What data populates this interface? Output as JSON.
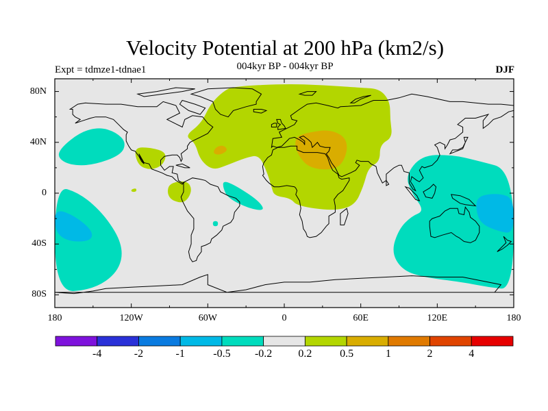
{
  "figure": {
    "title": "Velocity Potential at 200 hPa (km2/s)",
    "subtitle": "004kyr BP - 004kyr BP",
    "left_string": "Expt = tdmze1-tdnae1",
    "right_string": "DJF"
  },
  "map": {
    "projection": "cylindrical-equidistant",
    "lon_range": [
      -180,
      180
    ],
    "lat_range": [
      -90,
      90
    ],
    "ocean_fill": "#e6e6e6",
    "coastline_color": "#000000",
    "lat_ticks": [
      {
        "value": 80,
        "label": "80N"
      },
      {
        "value": 40,
        "label": "40N"
      },
      {
        "value": 0,
        "label": "0"
      },
      {
        "value": -40,
        "label": "40S"
      },
      {
        "value": -80,
        "label": "80S"
      }
    ],
    "lon_ticks": [
      {
        "value": -180,
        "label": "180"
      },
      {
        "value": -120,
        "label": "120W"
      },
      {
        "value": -60,
        "label": "60W"
      },
      {
        "value": 0,
        "label": "0"
      },
      {
        "value": 60,
        "label": "60E"
      },
      {
        "value": 120,
        "label": "120E"
      },
      {
        "value": 180,
        "label": "180"
      }
    ]
  },
  "colorbar": {
    "colors": [
      "#7e12dc",
      "#2a31d8",
      "#0a7be0",
      "#00b9e6",
      "#00dcbd",
      "#e6e6e6",
      "#b3d600",
      "#d9ad00",
      "#e07a00",
      "#e04400",
      "#e60000"
    ],
    "labels": [
      "-4",
      "-2",
      "-1",
      "-0.5",
      "-0.2",
      "0.2",
      "0.5",
      "1",
      "2",
      "4"
    ]
  },
  "chart_data": {
    "type": "heatmap",
    "variable": "Velocity Potential at 200 hPa",
    "units": "km2/s",
    "levels": [
      -4,
      -2,
      -1,
      -0.5,
      -0.2,
      0.2,
      0.5,
      1,
      2,
      4
    ],
    "regions": [
      {
        "name": "atlantic-africa-asia-positive",
        "range": [
          0.2,
          0.5
        ],
        "color": "#b3d600",
        "points": [
          [
            -40,
            84
          ],
          [
            0,
            86
          ],
          [
            30,
            85
          ],
          [
            60,
            83
          ],
          [
            75,
            82
          ],
          [
            83,
            72
          ],
          [
            83,
            58
          ],
          [
            85,
            44
          ],
          [
            75,
            38
          ],
          [
            75,
            25
          ],
          [
            66,
            20
          ],
          [
            62,
            5
          ],
          [
            55,
            -10
          ],
          [
            38,
            -14
          ],
          [
            10,
            -10
          ],
          [
            5,
            -4
          ],
          [
            -8,
            -2
          ],
          [
            -10,
            5
          ],
          [
            -14,
            18
          ],
          [
            -20,
            30
          ],
          [
            -30,
            28
          ],
          [
            -45,
            22
          ],
          [
            -56,
            18
          ],
          [
            -66,
            26
          ],
          [
            -70,
            40
          ],
          [
            -78,
            45
          ],
          [
            -65,
            55
          ],
          [
            -58,
            70
          ],
          [
            -48,
            80
          ]
        ]
      },
      {
        "name": "middle-east-maximum",
        "range": [
          0.5,
          1
        ],
        "color": "#d9ad00",
        "points": [
          [
            10,
            45
          ],
          [
            20,
            48
          ],
          [
            35,
            50
          ],
          [
            47,
            45
          ],
          [
            50,
            35
          ],
          [
            45,
            22
          ],
          [
            35,
            18
          ],
          [
            20,
            20
          ],
          [
            12,
            28
          ],
          [
            8,
            38
          ]
        ]
      },
      {
        "name": "north-atlantic-maximum",
        "range": [
          0.5,
          1
        ],
        "color": "#d9ad00",
        "points": [
          [
            -54,
            36
          ],
          [
            -48,
            38
          ],
          [
            -44,
            34
          ],
          [
            -50,
            30
          ],
          [
            -56,
            31
          ]
        ]
      },
      {
        "name": "central-america-positive",
        "range": [
          0.2,
          0.5
        ],
        "color": "#b3d600",
        "points": [
          [
            -118,
            36
          ],
          [
            -105,
            36
          ],
          [
            -92,
            32
          ],
          [
            -95,
            22
          ],
          [
            -105,
            18
          ],
          [
            -115,
            22
          ]
        ]
      },
      {
        "name": "south-america-positive",
        "range": [
          0.2,
          0.5
        ],
        "color": "#b3d600",
        "points": [
          [
            -90,
            8
          ],
          [
            -76,
            10
          ],
          [
            -72,
            2
          ],
          [
            -78,
            -8
          ],
          [
            -88,
            -6
          ],
          [
            -92,
            0
          ]
        ]
      },
      {
        "name": "east-pacific-small-positive",
        "range": [
          0.2,
          0.5
        ],
        "color": "#b3d600",
        "points": [
          [
            -120,
            3
          ],
          [
            -116,
            4
          ],
          [
            -116,
            1
          ],
          [
            -120,
            1
          ]
        ]
      },
      {
        "name": "north-pacific-negative",
        "range": [
          -0.5,
          -0.2
        ],
        "color": "#00dcbd",
        "points": [
          [
            -175,
            36
          ],
          [
            -160,
            48
          ],
          [
            -145,
            52
          ],
          [
            -132,
            48
          ],
          [
            -124,
            40
          ],
          [
            -128,
            30
          ],
          [
            -150,
            22
          ],
          [
            -168,
            22
          ],
          [
            -178,
            28
          ]
        ]
      },
      {
        "name": "south-pacific-negative",
        "range": [
          -0.5,
          -0.2
        ],
        "color": "#00dcbd",
        "points": [
          [
            -180,
            6
          ],
          [
            -160,
            0
          ],
          [
            -140,
            -18
          ],
          [
            -126,
            -42
          ],
          [
            -130,
            -62
          ],
          [
            -150,
            -76
          ],
          [
            -180,
            -78
          ]
        ]
      },
      {
        "name": "south-pacific-core",
        "range": [
          -1,
          -0.5
        ],
        "color": "#00b9e6",
        "points": [
          [
            -180,
            -12
          ],
          [
            -164,
            -18
          ],
          [
            -150,
            -30
          ],
          [
            -152,
            -38
          ],
          [
            -170,
            -38
          ],
          [
            -180,
            -30
          ]
        ]
      },
      {
        "name": "equatorial-atlantic-negative",
        "range": [
          -0.5,
          -0.2
        ],
        "color": "#00dcbd",
        "points": [
          [
            -48,
            10
          ],
          [
            -38,
            6
          ],
          [
            -20,
            -6
          ],
          [
            -15,
            -14
          ],
          [
            -28,
            -12
          ],
          [
            -44,
            -4
          ],
          [
            -48,
            4
          ]
        ]
      },
      {
        "name": "south-atlantic-small-negative",
        "range": [
          -0.5,
          -0.2
        ],
        "color": "#00dcbd",
        "points": [
          [
            -56,
            -22
          ],
          [
            -52,
            -22
          ],
          [
            -52,
            -26
          ],
          [
            -56,
            -26
          ]
        ]
      },
      {
        "name": "western-pacific-indian-negative",
        "range": [
          -0.5,
          -0.2
        ],
        "color": "#00dcbd",
        "points": [
          [
            180,
            18
          ],
          [
            150,
            26
          ],
          [
            132,
            30
          ],
          [
            108,
            30
          ],
          [
            95,
            14
          ],
          [
            100,
            0
          ],
          [
            110,
            -14
          ],
          [
            100,
            -18
          ],
          [
            90,
            -28
          ],
          [
            84,
            -46
          ],
          [
            92,
            -60
          ],
          [
            108,
            -66
          ],
          [
            140,
            -70
          ],
          [
            160,
            -74
          ],
          [
            180,
            -76
          ]
        ]
      },
      {
        "name": "west-pacific-core",
        "range": [
          -1,
          -0.5
        ],
        "color": "#00b9e6",
        "points": [
          [
            152,
            -2
          ],
          [
            168,
            0
          ],
          [
            180,
            -4
          ],
          [
            180,
            -32
          ],
          [
            168,
            -30
          ],
          [
            154,
            -24
          ],
          [
            150,
            -12
          ]
        ]
      }
    ]
  }
}
